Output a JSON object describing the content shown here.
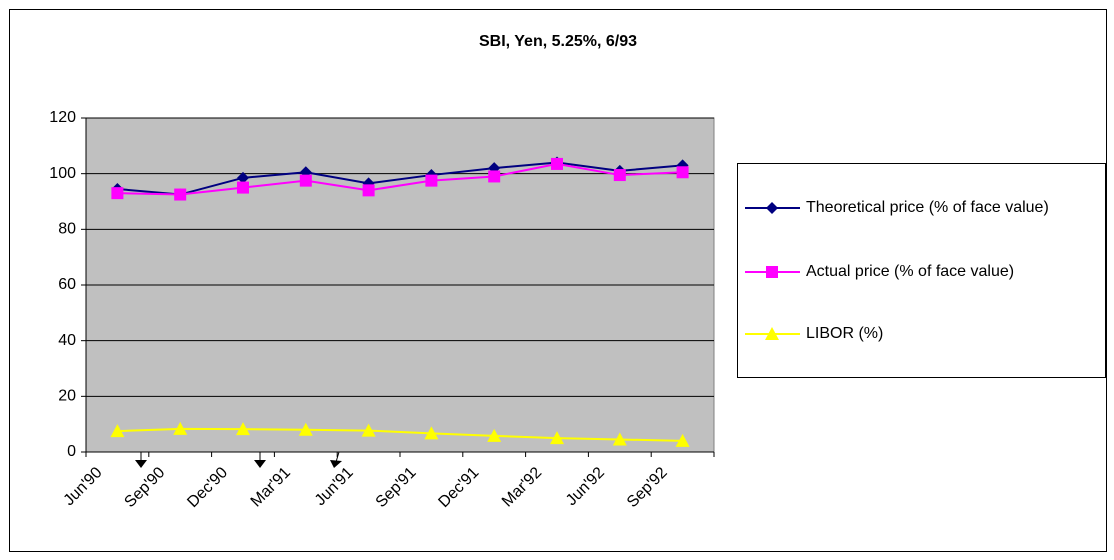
{
  "chart_data": {
    "type": "line",
    "title": "SBI, Yen, 5.25%, 6/93",
    "categories": [
      "Jun'90",
      "Sep'90",
      "Dec'90",
      "Mar'91",
      "Jun'91",
      "Sep'91",
      "Dec'91",
      "Mar'92",
      "Jun'92",
      "Sep'92"
    ],
    "series": [
      {
        "name": "Theoretical price (% of face value)",
        "color": "#000080",
        "marker": "diamond",
        "values": [
          94.5,
          92.5,
          98.5,
          100.5,
          96.5,
          99.5,
          102,
          104,
          101,
          103
        ]
      },
      {
        "name": "Actual price (% of face value)",
        "color": "#ff00ff",
        "marker": "square",
        "values": [
          93,
          92.5,
          95,
          97.5,
          94,
          97.5,
          99,
          103.5,
          99.5,
          100.5
        ]
      },
      {
        "name": "LIBOR (%)",
        "color": "#ffff00",
        "marker": "triangle",
        "values": [
          7.5,
          8.3,
          8.2,
          8,
          7.7,
          6.7,
          5.8,
          5,
          4.5,
          4
        ]
      }
    ],
    "ylim": [
      0,
      120
    ],
    "yticks": [
      0,
      20,
      40,
      60,
      80,
      100,
      120
    ],
    "grid": true
  }
}
